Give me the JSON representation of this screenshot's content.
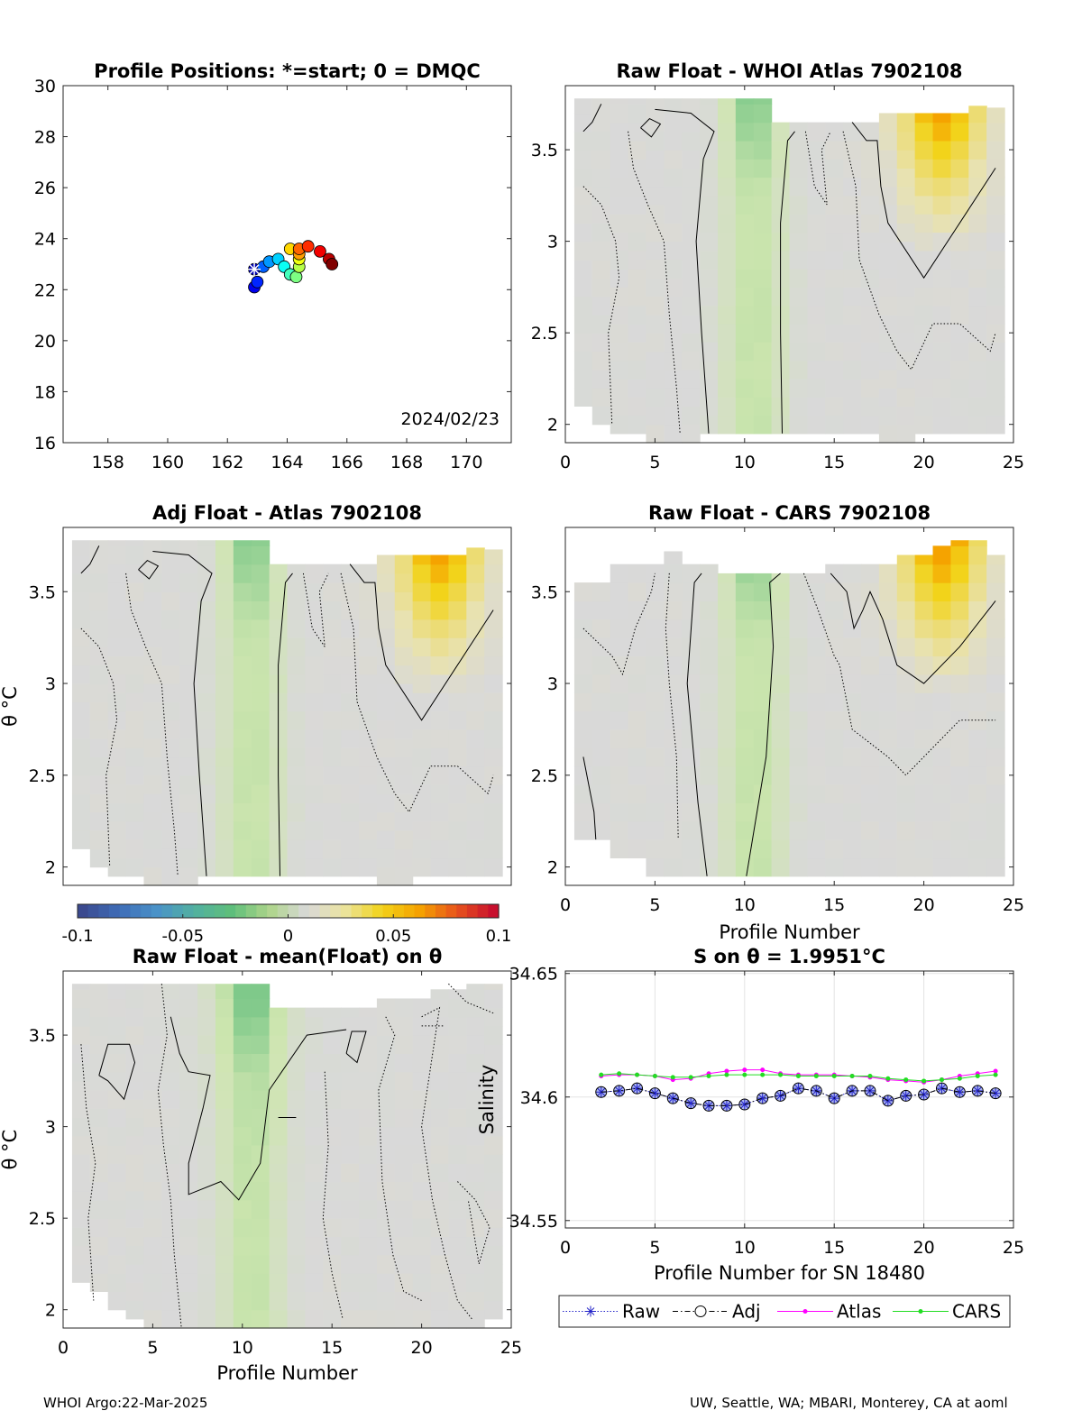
{
  "footer": {
    "left": "WHOI Argo:22-Mar-2025",
    "right": "UW, Seattle, WA; MBARI, Monterey, CA at aoml"
  },
  "colors": {
    "grey": "#d9d9d9",
    "light_green": "#cfe6b0",
    "green": "#7fc98a",
    "yellow": "#f2d31a",
    "orange": "#f5a300"
  },
  "chart_data": [
    {
      "id": "positions",
      "type": "scatter",
      "title": "Profile Positions: *=start; 0 = DMQC",
      "xticks": [
        158,
        160,
        162,
        164,
        166,
        168,
        170
      ],
      "yticks": [
        16,
        18,
        20,
        22,
        24,
        26,
        28,
        30
      ],
      "xlim": [
        156.5,
        171.5
      ],
      "ylim": [
        16,
        30
      ],
      "annotation": "2024/02/23",
      "start": [
        162.9,
        22.8
      ],
      "points": [
        [
          162.9,
          22.8
        ],
        [
          162.9,
          22.1
        ],
        [
          163.0,
          22.3
        ],
        [
          163.2,
          22.9
        ],
        [
          163.4,
          23.1
        ],
        [
          163.7,
          23.2
        ],
        [
          163.9,
          22.9
        ],
        [
          164.1,
          22.6
        ],
        [
          164.3,
          22.5
        ],
        [
          164.4,
          22.9
        ],
        [
          164.4,
          23.2
        ],
        [
          164.1,
          23.6
        ],
        [
          164.4,
          23.4
        ],
        [
          164.4,
          23.6
        ],
        [
          164.7,
          23.7
        ],
        [
          165.1,
          23.5
        ],
        [
          165.4,
          23.2
        ],
        [
          165.5,
          23.0
        ]
      ],
      "grid": false
    },
    {
      "id": "raw-whoi",
      "type": "heatmap",
      "title": "Raw Float - WHOI Atlas  7902108",
      "xlabel": "",
      "ylabel": "",
      "xticks": [
        0,
        5,
        10,
        15,
        20,
        25
      ],
      "yticks": [
        2,
        2.5,
        3,
        3.5
      ],
      "xlim": [
        0,
        25
      ],
      "ylim": [
        1.9,
        3.85
      ]
    },
    {
      "id": "adj-atlas",
      "type": "heatmap",
      "title": "Adj Float - Atlas  7902108",
      "xlabel": "",
      "ylabel": "θ °C",
      "xticks": [],
      "yticks": [
        2,
        2.5,
        3,
        3.5
      ],
      "xlim": [
        0,
        25
      ],
      "ylim": [
        1.9,
        3.85
      ]
    },
    {
      "id": "raw-cars",
      "type": "heatmap",
      "title": "Raw Float - CARS  7902108",
      "xlabel": "Profile Number",
      "ylabel": "",
      "xticks": [
        0,
        5,
        10,
        15,
        20,
        25
      ],
      "yticks": [
        2,
        2.5,
        3,
        3.5
      ],
      "xlim": [
        0,
        25
      ],
      "ylim": [
        1.9,
        3.85
      ]
    },
    {
      "id": "colorbar",
      "type": "heatmap",
      "ticks": [
        "-0.1",
        "-0.05",
        "0",
        "0.05",
        "0.1"
      ],
      "range": [
        -0.1,
        0.1
      ]
    },
    {
      "id": "raw-mean",
      "type": "heatmap",
      "title": "Raw Float - mean(Float) on θ",
      "xlabel": "Profile Number",
      "ylabel": "θ °C",
      "xticks": [
        0,
        5,
        10,
        15,
        20,
        25
      ],
      "yticks": [
        2,
        2.5,
        3,
        3.5
      ],
      "xlim": [
        0,
        25
      ],
      "ylim": [
        1.9,
        3.85
      ]
    },
    {
      "id": "salinity",
      "type": "line",
      "title": "S on θ = 1.9951°C",
      "xlabel": "Profile Number for SN 18480",
      "ylabel": "Salinity",
      "xticks": [
        0,
        5,
        10,
        15,
        20,
        25
      ],
      "yticks": [
        "34.55",
        "34.6",
        "34.65"
      ],
      "xlim": [
        0,
        25
      ],
      "ylim": [
        34.547,
        34.651
      ],
      "grid": true,
      "legend": "bottom",
      "x": [
        2,
        3,
        4,
        5,
        6,
        7,
        8,
        9,
        10,
        11,
        12,
        13,
        14,
        15,
        16,
        17,
        18,
        19,
        20,
        21,
        22,
        23,
        24
      ],
      "series": [
        {
          "name": "Raw",
          "color": "#2323c8",
          "values": [
            34.602,
            34.6025,
            34.6035,
            34.6015,
            34.5995,
            34.5975,
            34.5965,
            34.5965,
            34.597,
            34.5995,
            34.6005,
            34.6035,
            34.6025,
            34.5995,
            34.6025,
            34.6025,
            34.5985,
            34.6005,
            34.601,
            34.6035,
            34.602,
            34.6025,
            34.6015
          ]
        },
        {
          "name": "Adj",
          "color": "#000000",
          "values": [
            34.602,
            34.6025,
            34.6035,
            34.6015,
            34.5995,
            34.5975,
            34.5965,
            34.5965,
            34.597,
            34.5995,
            34.6005,
            34.6035,
            34.6025,
            34.5995,
            34.6025,
            34.6025,
            34.5985,
            34.6005,
            34.601,
            34.6035,
            34.602,
            34.6025,
            34.6015
          ]
        },
        {
          "name": "Atlas",
          "color": "#ff00ff",
          "values": [
            34.6085,
            34.609,
            34.609,
            34.6085,
            34.607,
            34.6075,
            34.6095,
            34.6105,
            34.611,
            34.611,
            34.6095,
            34.609,
            34.609,
            34.609,
            34.6085,
            34.608,
            34.607,
            34.6065,
            34.606,
            34.607,
            34.6085,
            34.6095,
            34.6105
          ]
        },
        {
          "name": "CARS",
          "color": "#22dd22",
          "values": [
            34.609,
            34.6095,
            34.609,
            34.6085,
            34.608,
            34.608,
            34.6085,
            34.609,
            34.609,
            34.609,
            34.609,
            34.6085,
            34.6085,
            34.6085,
            34.6085,
            34.6085,
            34.6075,
            34.607,
            34.6065,
            34.607,
            34.6075,
            34.6085,
            34.609
          ]
        }
      ]
    }
  ]
}
